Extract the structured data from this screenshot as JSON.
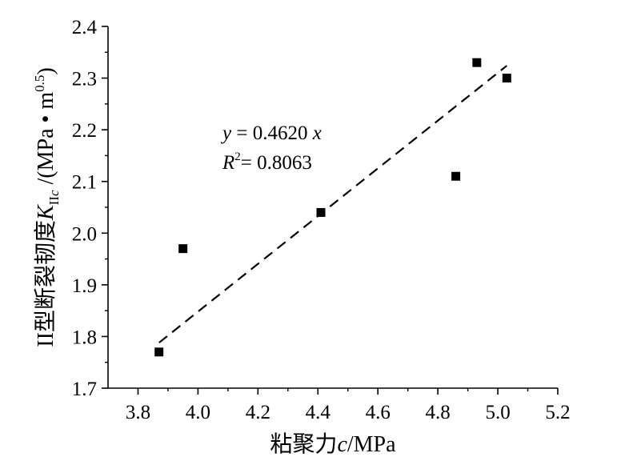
{
  "chart_data": {
    "type": "scatter",
    "points": [
      {
        "x": 3.87,
        "y": 1.77
      },
      {
        "x": 3.95,
        "y": 1.97
      },
      {
        "x": 4.41,
        "y": 2.04
      },
      {
        "x": 4.86,
        "y": 2.11
      },
      {
        "x": 4.93,
        "y": 2.33
      },
      {
        "x": 5.03,
        "y": 2.3
      }
    ],
    "fit_line": {
      "style": "dashed",
      "x_start": 3.87,
      "y_start": 1.788,
      "x_end": 5.03,
      "y_end": 2.324
    },
    "xlim": [
      3.7,
      5.2
    ],
    "ylim": [
      1.7,
      2.4
    ],
    "x_ticks": [
      "3.8",
      "4.0",
      "4.2",
      "4.4",
      "4.6",
      "4.8",
      "5.0",
      "5.2"
    ],
    "y_ticks": [
      "1.7",
      "1.8",
      "1.9",
      "2.0",
      "2.1",
      "2.2",
      "2.3",
      "2.4"
    ],
    "x_tick_values": [
      3.8,
      4.0,
      4.2,
      4.4,
      4.6,
      4.8,
      5.0,
      5.2
    ],
    "y_tick_values": [
      1.7,
      1.8,
      1.9,
      2.0,
      2.1,
      2.2,
      2.3,
      2.4
    ],
    "xlabel": {
      "chinese": "粘聚力",
      "var": "c",
      "unit": "/MPa"
    },
    "ylabel": {
      "chinese": "II型断裂韧度",
      "var": "K",
      "sub": "IIc",
      "unit_start": " /(MPa • m",
      "sup": "0.5",
      "unit_end": ")"
    },
    "annotation": {
      "eq_y": "y",
      "eq_mid": " = 0.4620 ",
      "eq_x": "x",
      "r_label": "R",
      "r_sup": "2",
      "r_value": "= 0.8063"
    },
    "grid": false,
    "legend": "none",
    "marker": "square",
    "colors": {
      "marker": "#000000",
      "line": "#000000",
      "axis": "#000000"
    }
  }
}
